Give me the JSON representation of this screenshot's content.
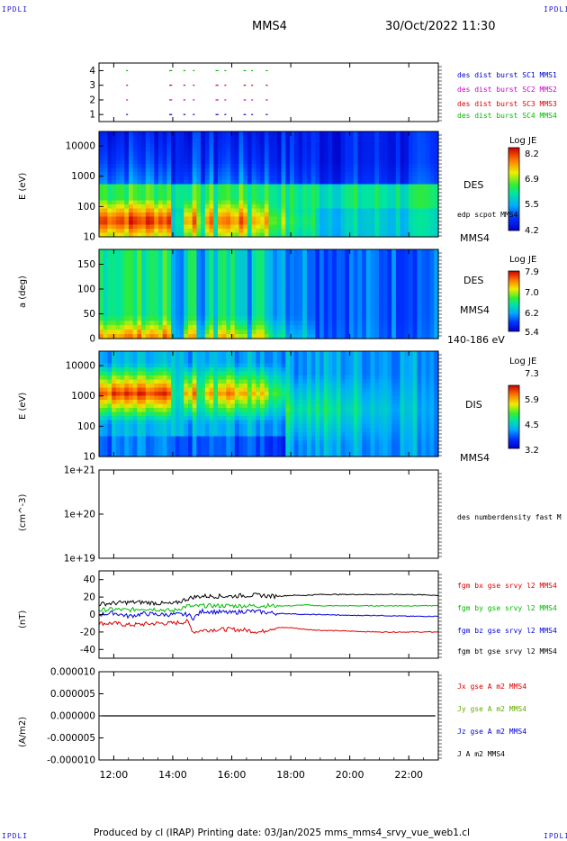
{
  "corner_tags": {
    "tl": "IPDLI",
    "tr": "IPDLI",
    "bl": "IPDLI",
    "br": "IPDLI"
  },
  "header": {
    "spacecraft": "MMS4",
    "date": "30/Oct/2022 11:30"
  },
  "footer": {
    "text": "Produced by cl (IRAP)    Printing date: 03/Jan/2025    mms_mms4_srvy_vue_web1.cl"
  },
  "colors": {
    "mms1": "#0000cc",
    "mms2": "#cc00cc",
    "mms3": "#dd0000",
    "mms4": "#00bb00",
    "bx": "#dd0000",
    "by": "#00bb00",
    "bz": "#0000dd",
    "bt": "#000000"
  },
  "chart_data": [
    {
      "type": "scatter",
      "panel": "burst",
      "yticks": [
        "1",
        "2",
        "3",
        "4"
      ],
      "legend": [
        {
          "label": "des dist burst SC1 MMS1",
          "color": "#0000cc"
        },
        {
          "label": "des dist burst SC2 MMS2",
          "color": "#cc00cc"
        },
        {
          "label": "des dist burst SC3 MMS3",
          "color": "#dd0000"
        },
        {
          "label": "des dist burst SC4 MMS4",
          "color": "#00bb00"
        }
      ],
      "burst_intervals_h": [
        [
          12.42,
          12.45
        ],
        [
          13.88,
          13.98
        ],
        [
          14.36,
          14.43
        ],
        [
          14.68,
          14.73
        ],
        [
          15.45,
          15.55
        ],
        [
          15.75,
          15.8
        ],
        [
          16.4,
          16.48
        ],
        [
          16.66,
          16.72
        ],
        [
          17.15,
          17.22
        ]
      ]
    },
    {
      "type": "heatmap",
      "panel": "des_energy",
      "ylabel": "E (eV)",
      "yscale": "log",
      "yticks": [
        "10",
        "100",
        "1000",
        "10000"
      ],
      "side_label": "DES",
      "side_sub": "edp scpot MMS4",
      "bottom_right": "MMS4",
      "colorbar": {
        "title": "Log JE",
        "ticks": [
          "8.2",
          "6.9",
          "5.5",
          "4.2"
        ]
      }
    },
    {
      "type": "heatmap",
      "panel": "des_pitch",
      "ylabel": "a (deg)",
      "yticks": [
        "0",
        "50",
        "100",
        "150"
      ],
      "ylim": [
        0,
        180
      ],
      "side_label": "DES",
      "side_sub": "MMS4",
      "bottom_right": "140-186 eV",
      "colorbar": {
        "title": "Log JE",
        "ticks": [
          "7.9",
          "7.0",
          "6.2",
          "5.4"
        ]
      }
    },
    {
      "type": "heatmap",
      "panel": "dis_energy",
      "ylabel": "E (eV)",
      "yscale": "log",
      "yticks": [
        "10",
        "100",
        "1000",
        "10000"
      ],
      "side_label": "DIS",
      "bottom_right": "MMS4",
      "colorbar": {
        "title": "Log JE",
        "ticks": [
          "7.3",
          "5.9",
          "4.5",
          "3.2"
        ]
      }
    },
    {
      "type": "line",
      "panel": "density",
      "ylabel": "(cm^-3)",
      "yscale": "log",
      "yticks": [
        "1e+21",
        "1e+20",
        "1e+19"
      ],
      "legend": [
        {
          "label": "des numberdensity fast M",
          "color": "#000000"
        }
      ],
      "series": []
    },
    {
      "type": "line",
      "panel": "bfield",
      "ylabel": "(nT)",
      "ylim": [
        -50,
        50
      ],
      "yticks": [
        "40",
        "20",
        "0",
        "-20",
        "-40"
      ],
      "legend": [
        {
          "label": "fgm bx gse srvy l2 MMS4",
          "color": "#dd0000"
        },
        {
          "label": "fgm by gse srvy l2 MMS4",
          "color": "#00bb00"
        },
        {
          "label": "fgm bz gse srvy l2 MMS4",
          "color": "#0000dd"
        },
        {
          "label": "fgm bt gse srvy l2 MMS4",
          "color": "#000000"
        }
      ],
      "x_hours": [
        11.5,
        12.0,
        12.5,
        13.0,
        13.5,
        14.0,
        14.5,
        14.7,
        15.0,
        15.5,
        16.0,
        16.5,
        17.0,
        17.3,
        17.6,
        18.0,
        18.5,
        19.0,
        20.0,
        21.0,
        22.0,
        23.0
      ],
      "series": [
        {
          "name": "bx",
          "values": [
            -10,
            -10,
            -12,
            -11,
            -10,
            -10,
            -8,
            -20,
            -18,
            -17,
            -17,
            -18,
            -20,
            -16,
            -15,
            -15,
            -17,
            -18,
            -19,
            -20,
            -20,
            -20
          ]
        },
        {
          "name": "by",
          "values": [
            5,
            6,
            5,
            7,
            6,
            4,
            10,
            9,
            10,
            10,
            10,
            10,
            10,
            10,
            10,
            10,
            11,
            10,
            10,
            10,
            10,
            10
          ]
        },
        {
          "name": "bz",
          "values": [
            0,
            2,
            -2,
            1,
            0,
            0,
            0,
            -4,
            4,
            3,
            2,
            4,
            3,
            2,
            1,
            1,
            0,
            0,
            -1,
            -1,
            -2,
            -2
          ]
        },
        {
          "name": "bt",
          "values": [
            12,
            13,
            14,
            14,
            13,
            12,
            18,
            20,
            21,
            21,
            21,
            22,
            22,
            21,
            21,
            22,
            22,
            23,
            23,
            23,
            23,
            22
          ]
        }
      ]
    },
    {
      "type": "line",
      "panel": "current",
      "ylabel": "(A/m2)",
      "ylim": [
        -1e-05,
        1e-05
      ],
      "yticks": [
        "0.000010",
        "0.000005",
        "0.000000",
        "-0.000005",
        "-0.000010"
      ],
      "legend": [
        {
          "label": "Jx gse A m2 MMS4",
          "color": "#dd0000"
        },
        {
          "label": "Jy gse A m2 MMS4",
          "color": "#66aa00"
        },
        {
          "label": "Jz gse A m2 MMS4",
          "color": "#0000dd"
        },
        {
          "label": "J A m2 MMS4",
          "color": "#000000"
        }
      ],
      "series": [
        {
          "name": "J",
          "values": [
            0,
            0
          ]
        }
      ]
    }
  ],
  "x_axis": {
    "ticks": [
      "12:00",
      "14:00",
      "16:00",
      "18:00",
      "20:00",
      "22:00"
    ],
    "tick_hours": [
      12,
      14,
      16,
      18,
      20,
      22
    ],
    "range_h": [
      11.5,
      23.0
    ]
  }
}
